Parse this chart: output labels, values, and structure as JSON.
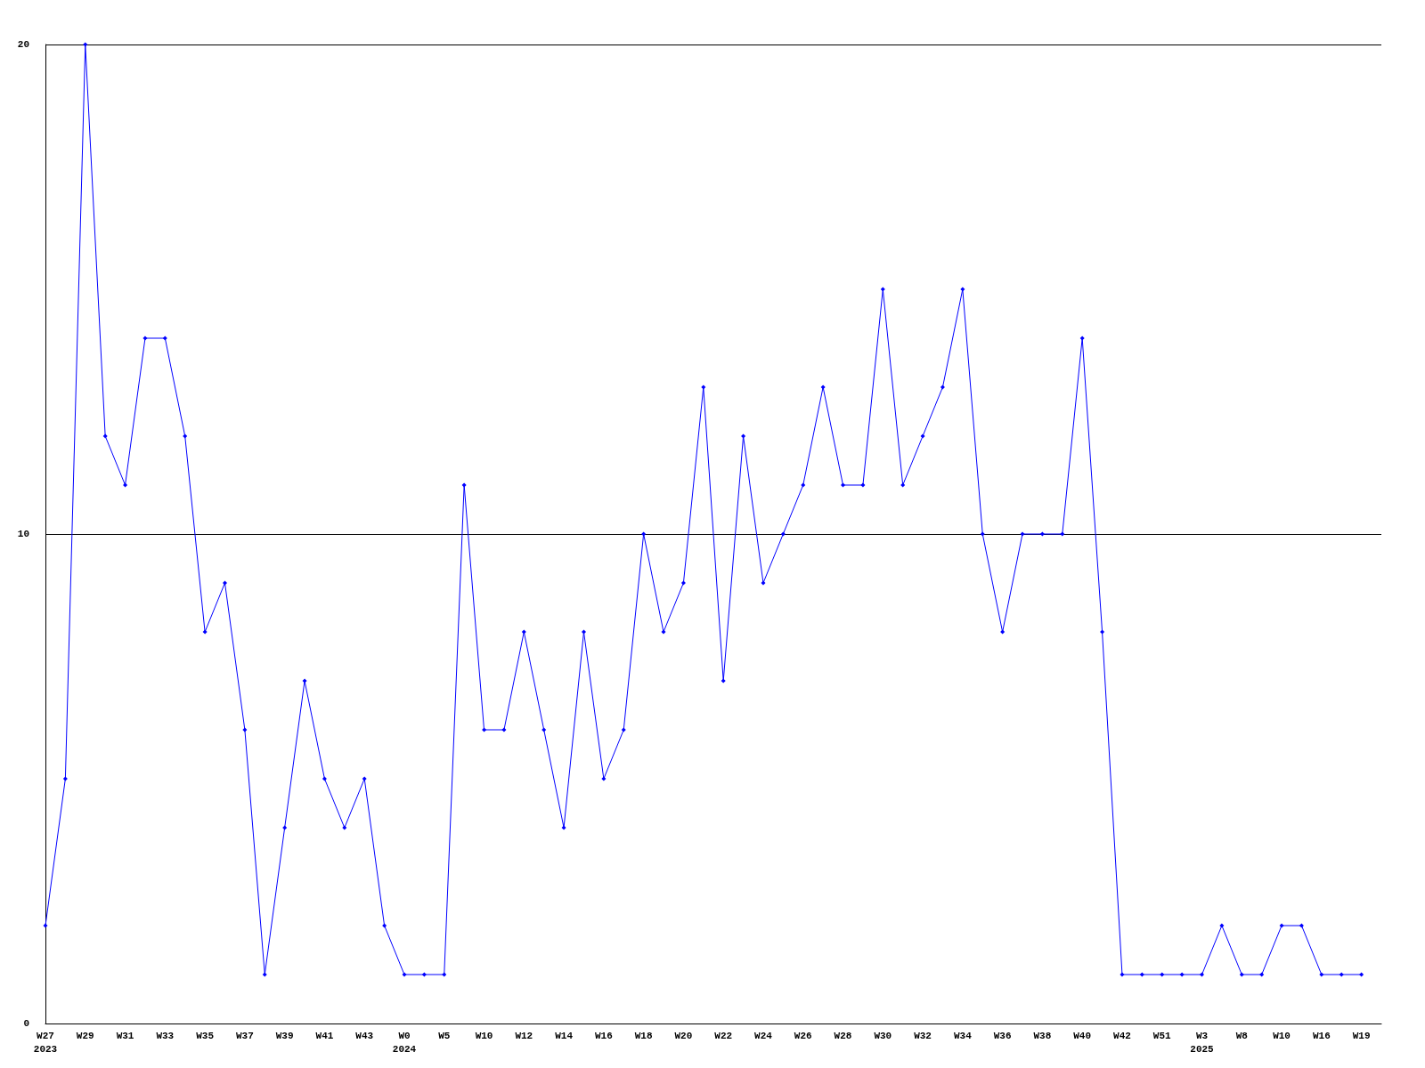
{
  "chart_data": {
    "type": "line",
    "categories": [
      "W27\n2023",
      null,
      "W29",
      null,
      "W31",
      null,
      "W33",
      null,
      "W35",
      null,
      "W37",
      null,
      "W39",
      null,
      "W41",
      null,
      "W43",
      null,
      "W0\n2024",
      null,
      "W5",
      null,
      "W10",
      null,
      "W12",
      null,
      "W14",
      null,
      "W16",
      null,
      "W18",
      null,
      "W20",
      null,
      "W22",
      null,
      "W24",
      null,
      "W26",
      null,
      "W28",
      null,
      "W30",
      null,
      "W32",
      null,
      "W34",
      null,
      "W36",
      null,
      "W38",
      null,
      "W40",
      null,
      "W42",
      null,
      "W51",
      null,
      "W3\n2025",
      null,
      "W8",
      null,
      "W10",
      null,
      "W16",
      null,
      "W19",
      null
    ],
    "series": [
      {
        "color": "#0000ff",
        "values": [
          2,
          5,
          20,
          12,
          11,
          14,
          14,
          12,
          8,
          9,
          6,
          1,
          4,
          7,
          5,
          4,
          5,
          2,
          1,
          1,
          1,
          11,
          6,
          6,
          8,
          6,
          4,
          8,
          5,
          6,
          10,
          8,
          9,
          13,
          7,
          12,
          9,
          10,
          11,
          13,
          11,
          11,
          15,
          11,
          12,
          13,
          15,
          10,
          8,
          10,
          10,
          10,
          14,
          8,
          1,
          1,
          1,
          1,
          1,
          2,
          1,
          1,
          2,
          2,
          1,
          1,
          1,
          null
        ]
      }
    ],
    "ylim": [
      0,
      20
    ],
    "yticks": [
      0,
      10,
      20
    ],
    "grid": "y",
    "marker": "diamond",
    "line_style": "solid"
  }
}
